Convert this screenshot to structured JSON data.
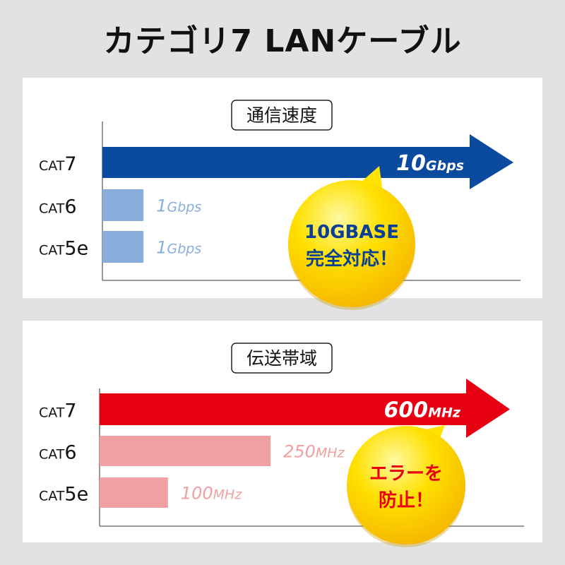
{
  "page_title": "カテゴリ7 LANケーブル",
  "chart_data": [
    {
      "type": "bar",
      "orientation": "horizontal",
      "title": "通信速度",
      "unit": "Gbps",
      "categories": [
        {
          "prefix": "CAT",
          "suffix": "7"
        },
        {
          "prefix": "CAT",
          "suffix": "6"
        },
        {
          "prefix": "CAT",
          "suffix": "5e"
        }
      ],
      "values": [
        10,
        1,
        1
      ],
      "value_labels": [
        {
          "num": "10",
          "unit": "Gbps"
        },
        {
          "num": "1",
          "unit": "Gbps"
        },
        {
          "num": "1",
          "unit": "Gbps"
        }
      ],
      "xlim": [
        0,
        10
      ],
      "colors": {
        "highlight": "#0a4a9f",
        "other": "#8aaedc",
        "other_label": "#8aaedc"
      },
      "callout": {
        "lines": [
          "10GBASE",
          "完全対応！"
        ],
        "color": "#0a3f96",
        "bubble": "#ffd800"
      }
    },
    {
      "type": "bar",
      "orientation": "horizontal",
      "title": "伝送帯域",
      "unit": "MHz",
      "categories": [
        {
          "prefix": "CAT",
          "suffix": "7"
        },
        {
          "prefix": "CAT",
          "suffix": "6"
        },
        {
          "prefix": "CAT",
          "suffix": "5e"
        }
      ],
      "values": [
        600,
        250,
        100
      ],
      "value_labels": [
        {
          "num": "600",
          "unit": "MHz"
        },
        {
          "num": "250",
          "unit": "MHz"
        },
        {
          "num": "100",
          "unit": "MHz"
        }
      ],
      "xlim": [
        0,
        600
      ],
      "colors": {
        "highlight": "#e60012",
        "other": "#f0a0a3",
        "other_label": "#f0a0a3"
      },
      "callout": {
        "lines": [
          "エラーを",
          "防止！"
        ],
        "color": "#e60012",
        "bubble": "#ffd800"
      }
    }
  ]
}
